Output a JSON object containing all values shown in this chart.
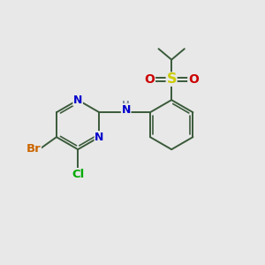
{
  "background_color": "#e8e8e8",
  "fig_size": [
    3.0,
    3.0
  ],
  "dpi": 100,
  "atom_colors": {
    "C": "#333333",
    "N": "#0000cc",
    "O": "#cc0000",
    "S": "#cccc00",
    "Br": "#cc6600",
    "Cl": "#00aa00",
    "H": "#778899"
  },
  "bond_color": "#3a5a3a",
  "bond_width": 1.4,
  "font_size": 9
}
